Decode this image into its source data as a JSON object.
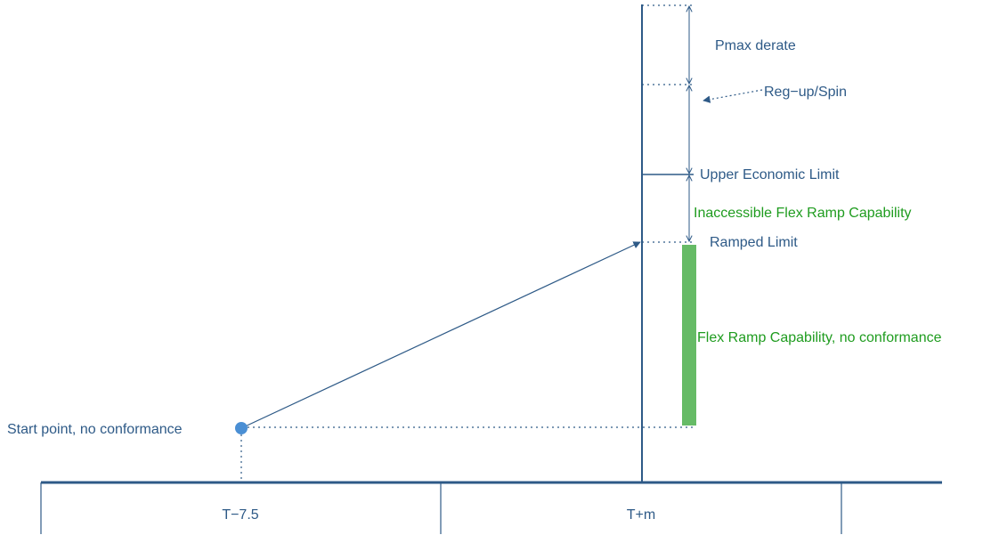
{
  "colors": {
    "line": "#2e5a87",
    "label": "#2e5a87",
    "flex": "#1f9c1f",
    "bar": "#66bb66",
    "point": "#4a8fd4"
  },
  "labels": {
    "pmax_derate": "Pmax derate",
    "reg_up_spin": "Reg−up/Spin",
    "upper_economic_limit": "Upper Economic Limit",
    "inaccessible_flex": "Inaccessible Flex Ramp Capability",
    "ramped_limit": "Ramped Limit",
    "flex_capability": "Flex Ramp Capability, no conformance",
    "start_point": "Start point, no conformance"
  },
  "timeline": {
    "t_minus": "T−7.5",
    "t_plus": "T+m"
  }
}
